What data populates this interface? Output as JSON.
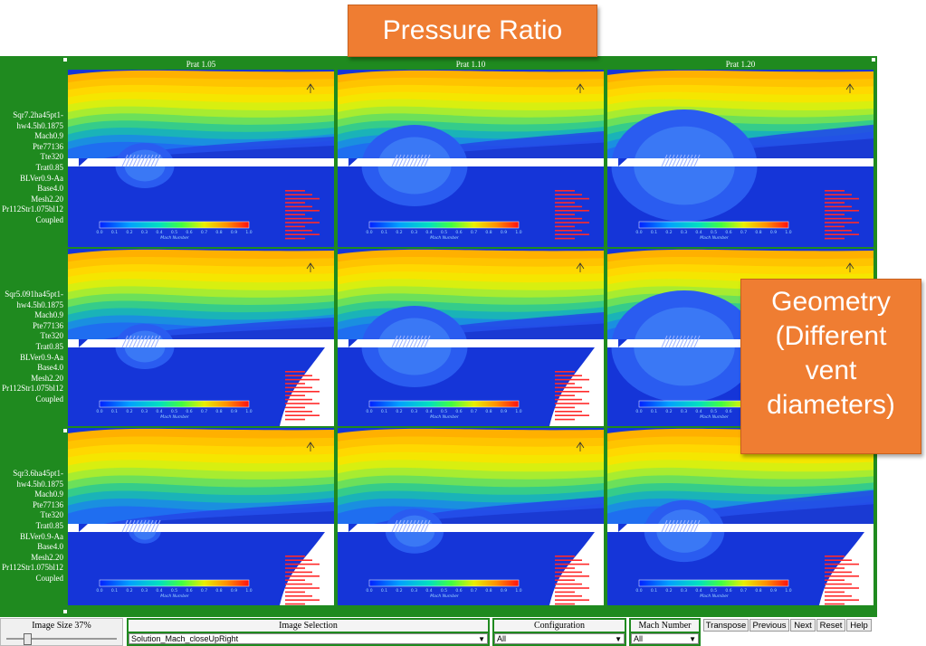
{
  "callouts": {
    "pressure": "Pressure Ratio",
    "geometry_lines": [
      "Geometry",
      "(Different",
      "vent",
      "diameters)"
    ]
  },
  "columns": [
    "Prat 1.05",
    "Prat 1.10",
    "Prat 1.20"
  ],
  "rows": [
    {
      "label_lines": [
        "Sqr7.2ha45pt1-",
        "hw4.5h0.1875",
        "Mach0.9",
        "Pte77136",
        "Tte320",
        "Trat0.85",
        "BLVer0.9-Aa",
        "Base4.0",
        "Mesh2.20",
        "Pr112Str1.075bl12",
        "Coupled"
      ]
    },
    {
      "label_lines": [
        "Sqr5.091ha45pt1-",
        "hw4.5h0.1875",
        "Mach0.9",
        "Pte77136",
        "Tte320",
        "Trat0.85",
        "BLVer0.9-Aa",
        "Base4.0",
        "Mesh2.20",
        "Pr112Str1.075bl12",
        "Coupled"
      ]
    },
    {
      "label_lines": [
        "Sqr3.6ha45pt1-",
        "hw4.5h0.1875",
        "Mach0.9",
        "Pte77136",
        "Tte320",
        "Trat0.85",
        "BLVer0.9-Aa",
        "Base4.0",
        "Mesh2.20",
        "Pr112Str1.075bl12",
        "Coupled"
      ]
    }
  ],
  "colorbar": {
    "ticks": [
      "0.0",
      "0.1",
      "0.2",
      "0.3",
      "0.4",
      "0.5",
      "0.6",
      "0.7",
      "0.8",
      "0.9",
      "1.0"
    ],
    "title": "Mach Number"
  },
  "controls": {
    "image_size_label": "Image Size 37%",
    "image_size_value": 0.37,
    "image_selection_label": "Image Selection",
    "image_selection_value": "Solution_Mach_closeUpRight",
    "configuration_label": "Configuration",
    "configuration_value": "All",
    "mach_label": "Mach Number",
    "mach_value": "All",
    "buttons": [
      "Transpose",
      "Previous",
      "Next",
      "Reset",
      "Help"
    ]
  },
  "colors": {
    "frame": "#1f8a1f",
    "callout": "#ef7d32",
    "core": "#1535d8",
    "annotation": "#ff2a2a"
  }
}
